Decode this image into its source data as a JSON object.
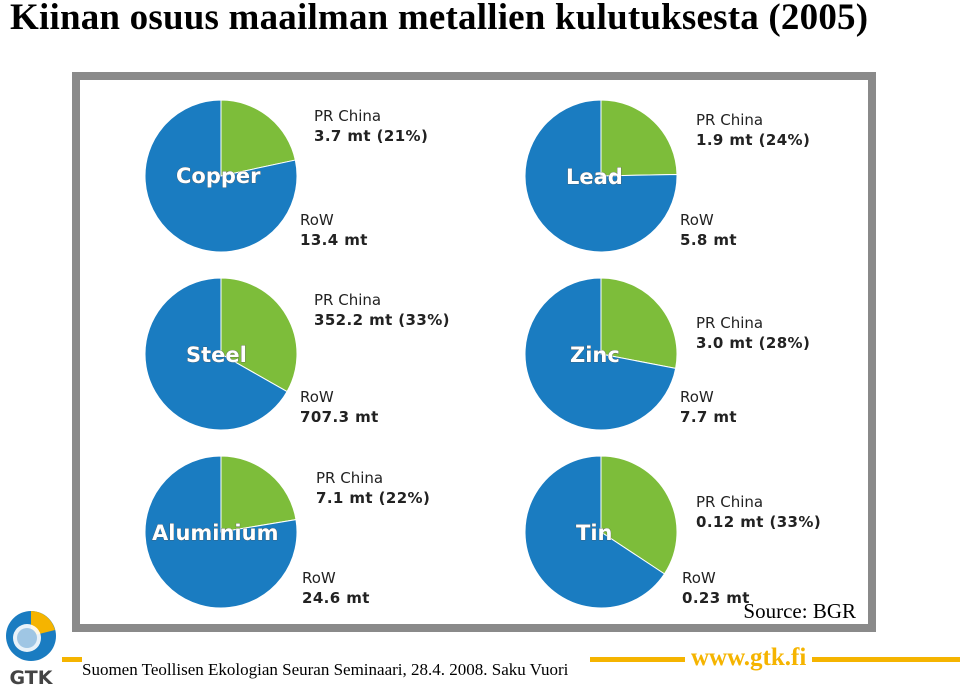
{
  "title": "Kiinan osuus maailman metallien kulutuksesta (2005)",
  "source": "Source: BGR",
  "footer": {
    "text": "Suomen Teollisen Ekologian Seuran Seminaari, 28.4. 2008. Saku Vuori",
    "url": "www.gtk.fi",
    "logo_text": "GTK"
  },
  "colors": {
    "china": "#7dbd3a",
    "row": "#1a7cc1",
    "accent": "#f5b400"
  },
  "chart_data": [
    {
      "type": "pie",
      "title": "Copper",
      "slices": [
        {
          "label": "PR China",
          "value": 3.7,
          "value_text": "3.7 mt (21%)"
        },
        {
          "label": "RoW",
          "value": 13.4,
          "value_text": "13.4 mt"
        }
      ]
    },
    {
      "type": "pie",
      "title": "Lead",
      "slices": [
        {
          "label": "PR China",
          "value": 1.9,
          "value_text": "1.9 mt (24%)"
        },
        {
          "label": "RoW",
          "value": 5.8,
          "value_text": "5.8 mt"
        }
      ]
    },
    {
      "type": "pie",
      "title": "Steel",
      "slices": [
        {
          "label": "PR China",
          "value": 352.2,
          "value_text": "352.2 mt (33%)"
        },
        {
          "label": "RoW",
          "value": 707.3,
          "value_text": "707.3 mt"
        }
      ]
    },
    {
      "type": "pie",
      "title": "Zinc",
      "slices": [
        {
          "label": "PR China",
          "value": 3.0,
          "value_text": "3.0 mt (28%)"
        },
        {
          "label": "RoW",
          "value": 7.7,
          "value_text": "7.7 mt"
        }
      ]
    },
    {
      "type": "pie",
      "title": "Aluminium",
      "slices": [
        {
          "label": "PR China",
          "value": 7.1,
          "value_text": "7.1 mt (22%)"
        },
        {
          "label": "RoW",
          "value": 24.6,
          "value_text": "24.6 mt"
        }
      ]
    },
    {
      "type": "pie",
      "title": "Tin",
      "slices": [
        {
          "label": "PR China",
          "value": 0.12,
          "value_text": "0.12 mt (33%)"
        },
        {
          "label": "RoW",
          "value": 0.23,
          "value_text": "0.23 mt"
        }
      ]
    }
  ]
}
